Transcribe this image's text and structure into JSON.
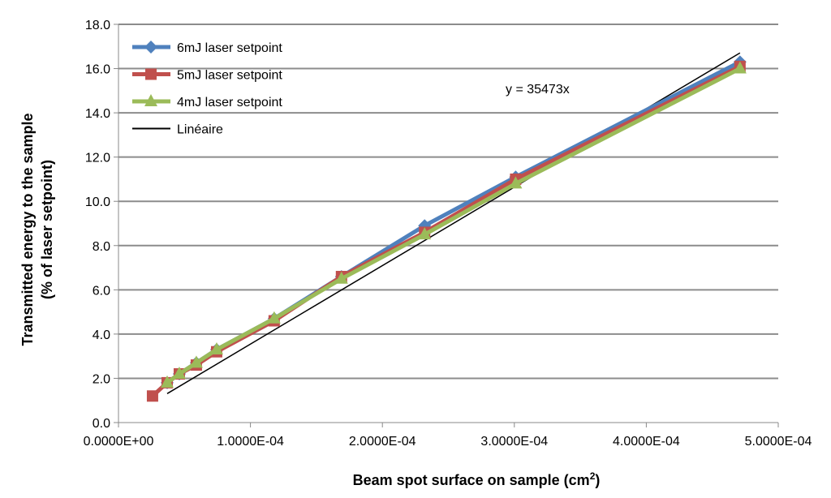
{
  "chart_data": {
    "type": "line",
    "title": "",
    "xlabel": "Beam spot surface on sample (cm",
    "xlabel_sup": "2",
    "xlabel_end": ")",
    "ylabel_line1": "Transmitted energy to the sample",
    "ylabel_line2": "(% of laser setpoint)",
    "xlim": [
      0,
      0.0005
    ],
    "ylim": [
      0,
      18
    ],
    "xticks": [
      0,
      0.0001,
      0.0002,
      0.0003,
      0.0004,
      0.0005
    ],
    "xtick_labels": [
      "0.0000E+00",
      "1.0000E-04",
      "2.0000E-04",
      "3.0000E-04",
      "4.0000E-04",
      "5.0000E-04"
    ],
    "yticks": [
      0,
      2,
      4,
      6,
      8,
      10,
      12,
      14,
      16,
      18
    ],
    "ytick_labels": [
      "0.0",
      "2.0",
      "4.0",
      "6.0",
      "8.0",
      "10.0",
      "12.0",
      "14.0",
      "16.0",
      "18.0"
    ],
    "grid": "horizontal",
    "legend_position": "top-left",
    "series": [
      {
        "name": "6mJ laser setpoint",
        "color": "#4F81BD",
        "marker": "diamond",
        "x": [
          3.69e-05,
          4.61e-05,
          5.9e-05,
          7.44e-05,
          0.000118,
          0.000169,
          0.000232,
          0.000301,
          0.000471
        ],
        "y": [
          1.8,
          2.2,
          2.7,
          3.3,
          4.7,
          6.6,
          8.9,
          11.1,
          16.3
        ]
      },
      {
        "name": "5mJ laser setpoint",
        "color": "#C0504D",
        "marker": "square",
        "x": [
          2.58e-05,
          3.69e-05,
          4.61e-05,
          5.9e-05,
          7.44e-05,
          0.000118,
          0.000169,
          0.000232,
          0.000301,
          0.000471
        ],
        "y": [
          1.2,
          1.8,
          2.2,
          2.6,
          3.2,
          4.6,
          6.6,
          8.6,
          11.0,
          16.1
        ]
      },
      {
        "name": "4mJ laser setpoint",
        "color": "#9BBB59",
        "marker": "triangle",
        "x": [
          3.69e-05,
          4.61e-05,
          5.9e-05,
          7.44e-05,
          0.000118,
          0.000169,
          0.000232,
          0.000301,
          0.000471
        ],
        "y": [
          1.8,
          2.2,
          2.7,
          3.3,
          4.7,
          6.5,
          8.5,
          10.8,
          16.0
        ]
      }
    ],
    "trendline": {
      "name": "Linéaire",
      "color": "#000000",
      "slope": 35473,
      "x_range": [
        3.69e-05,
        0.000471
      ],
      "equation": "y = 35473x"
    }
  }
}
